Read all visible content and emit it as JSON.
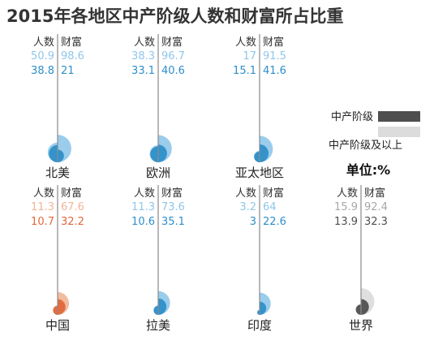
{
  "title": "2015年各地区中产阶级人数和财富所占比重",
  "chart_data": {
    "type": "semicircle-comparison",
    "title": "2015年各地区中产阶级人数和财富所占比重",
    "headers": {
      "population": "人数",
      "wealth": "财富"
    },
    "legend": [
      {
        "label": "中产阶级",
        "series": "middle_class"
      },
      {
        "label": "中产阶级及以上",
        "series": "middle_class_and_above"
      }
    ],
    "unit": "单位:%",
    "regions": [
      {
        "name": "北美",
        "middle_and_above": {
          "population": 50.9,
          "wealth": 98.6
        },
        "middle_class": {
          "population": 38.8,
          "wealth": 21
        },
        "colors": {
          "dark": "#2E8FC9",
          "light": "#8FC6EA"
        }
      },
      {
        "name": "欧洲",
        "middle_and_above": {
          "population": 38.3,
          "wealth": 96.7
        },
        "middle_class": {
          "population": 33.1,
          "wealth": 40.6
        },
        "colors": {
          "dark": "#2E8FC9",
          "light": "#8FC6EA"
        }
      },
      {
        "name": "亚太地区",
        "middle_and_above": {
          "population": 17,
          "wealth": 91.5
        },
        "middle_class": {
          "population": 15.1,
          "wealth": 41.6
        },
        "colors": {
          "dark": "#2E8FC9",
          "light": "#8FC6EA"
        }
      },
      {
        "name": "中国",
        "middle_and_above": {
          "population": 11.3,
          "wealth": 67.6
        },
        "middle_class": {
          "population": 10.7,
          "wealth": 32.2
        },
        "colors": {
          "dark": "#E2673A",
          "light": "#F0B596"
        }
      },
      {
        "name": "拉美",
        "middle_and_above": {
          "population": 11.3,
          "wealth": 73.6
        },
        "middle_class": {
          "population": 10.6,
          "wealth": 35.1
        },
        "colors": {
          "dark": "#2E8FC9",
          "light": "#8FC6EA"
        }
      },
      {
        "name": "印度",
        "middle_and_above": {
          "population": 3.2,
          "wealth": 64
        },
        "middle_class": {
          "population": 3,
          "wealth": 22.6
        },
        "colors": {
          "dark": "#2E8FC9",
          "light": "#8FC6EA"
        }
      },
      {
        "name": "世界",
        "middle_and_above": {
          "population": 15.9,
          "wealth": 92.4
        },
        "middle_class": {
          "population": 13.9,
          "wealth": 32.3
        },
        "colors": {
          "dark": "#4F4F4F",
          "light": "#DCDCDC"
        }
      }
    ]
  }
}
